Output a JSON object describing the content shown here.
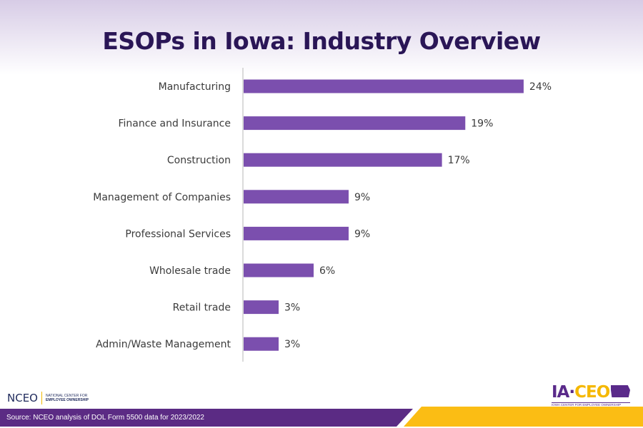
{
  "title": "ESOPs in Iowa: Industry Overview",
  "chart_data": {
    "type": "bar",
    "orientation": "horizontal",
    "title": "ESOPs in Iowa: Industry Overview",
    "categories": [
      "Manufacturing",
      "Finance and Insurance",
      "Construction",
      "Management of Companies",
      "Professional Services",
      "Wholesale trade",
      "Retail trade",
      "Admin/Waste Management"
    ],
    "values": [
      24,
      19,
      17,
      9,
      9,
      6,
      3,
      3
    ],
    "data_labels": [
      "24%",
      "19%",
      "17%",
      "9%",
      "9%",
      "6%",
      "3%",
      "3%"
    ],
    "unit": "%",
    "bar_color": "#7b4fae",
    "grid": false
  },
  "footer": {
    "source": "Source: NCEO analysis of DOL Form 5500 data for 2023/2022",
    "nceo_logo": "NCEO",
    "nceo_line1": "NATIONAL CENTER FOR",
    "nceo_line2": "EMPLOYEE OWNERSHIP",
    "iaceo_logo_ia": "IA·",
    "iaceo_logo_ceo": "CEO",
    "iaceo_sub": "IOWA CENTER FOR EMPLOYEE OWNERSHIP"
  },
  "colors": {
    "purple": "#5b2b84",
    "gold": "#fbbd14",
    "title": "#2a1656"
  }
}
